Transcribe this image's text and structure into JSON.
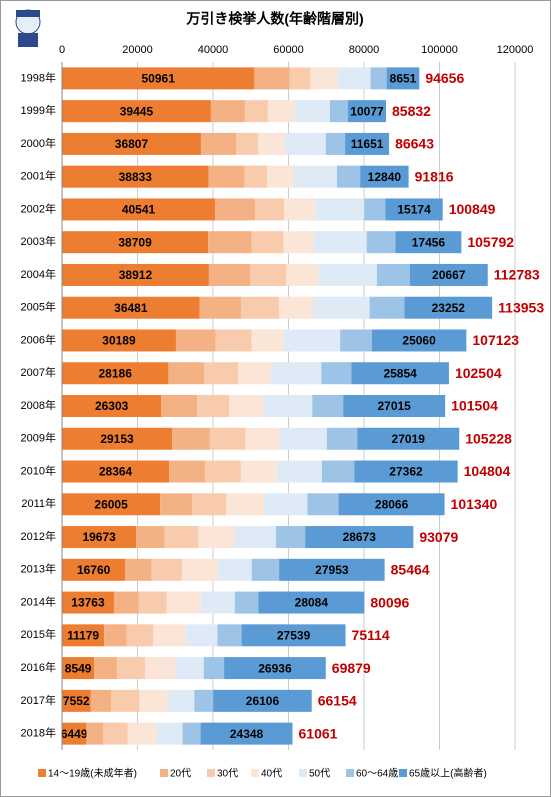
{
  "chart_data": {
    "type": "stacked-bar-horizontal",
    "title": "万引き検挙人数(年齢階層別)",
    "categories": [
      "1998年",
      "1999年",
      "2000年",
      "2001年",
      "2002年",
      "2003年",
      "2004年",
      "2005年",
      "2006年",
      "2007年",
      "2008年",
      "2009年",
      "2010年",
      "2011年",
      "2012年",
      "2013年",
      "2014年",
      "2015年",
      "2016年",
      "2017年",
      "2018年"
    ],
    "series": [
      {
        "name": "14～19歳(未成年者)",
        "color": "#ed7d31",
        "values": [
          50961,
          39445,
          36807,
          38833,
          40541,
          38709,
          38912,
          36481,
          30189,
          28186,
          26303,
          29153,
          28364,
          26005,
          19673,
          16760,
          13763,
          11179,
          8549,
          7552,
          6449
        ]
      },
      {
        "name": "20代",
        "color": "#f4b183",
        "values": [
          9300,
          9000,
          9300,
          9500,
          10600,
          11500,
          11000,
          11000,
          10500,
          9500,
          9500,
          10000,
          9500,
          8500,
          7500,
          7000,
          6500,
          6000,
          6000,
          5500,
          4500
        ]
      },
      {
        "name": "30代",
        "color": "#f8cbad",
        "values": [
          5600,
          6100,
          5800,
          6000,
          7700,
          8500,
          9500,
          10000,
          9500,
          9000,
          8500,
          9500,
          9500,
          9000,
          9000,
          8000,
          7500,
          7000,
          7500,
          7500,
          6500
        ]
      },
      {
        "name": "40代",
        "color": "#fbe5d6",
        "values": [
          7200,
          7150,
          7150,
          7000,
          8200,
          8000,
          8500,
          9000,
          8500,
          8500,
          9000,
          9000,
          9500,
          10000,
          9500,
          9500,
          9000,
          8500,
          8000,
          7500,
          7500
        ]
      },
      {
        "name": "50代",
        "color": "#deebf7",
        "values": [
          8700,
          9270,
          10800,
          11500,
          13000,
          14000,
          15500,
          15000,
          15000,
          13500,
          13000,
          12500,
          12000,
          11500,
          11000,
          9000,
          9000,
          8500,
          7500,
          7000,
          7000
        ]
      },
      {
        "name": "60～64歳",
        "color": "#9dc3e6",
        "values": [
          4244,
          4790,
          5135,
          6143,
          5634,
          7627,
          8704,
          9220,
          8374,
          7964,
          8186,
          8056,
          8578,
          8269,
          7733,
          7251,
          6249,
          6396,
          5394,
          4996,
          4764
        ]
      },
      {
        "name": "65歳以上(高齢者)",
        "color": "#5b9bd5",
        "values": [
          8651,
          10077,
          11651,
          12840,
          15174,
          17456,
          20667,
          23252,
          25060,
          25854,
          27015,
          27019,
          27362,
          28066,
          28673,
          27953,
          28084,
          27539,
          26936,
          26106,
          24348
        ]
      }
    ],
    "totals": [
      94656,
      85832,
      86643,
      91816,
      100849,
      105792,
      112783,
      113953,
      107123,
      102504,
      101504,
      105228,
      104804,
      101340,
      93079,
      85464,
      80096,
      75114,
      69879,
      66154,
      61061
    ],
    "totals_color": "#c00000",
    "xlim": [
      0,
      120000
    ],
    "xticks": [
      0,
      20000,
      40000,
      60000,
      80000,
      100000,
      120000
    ],
    "grid": true
  }
}
